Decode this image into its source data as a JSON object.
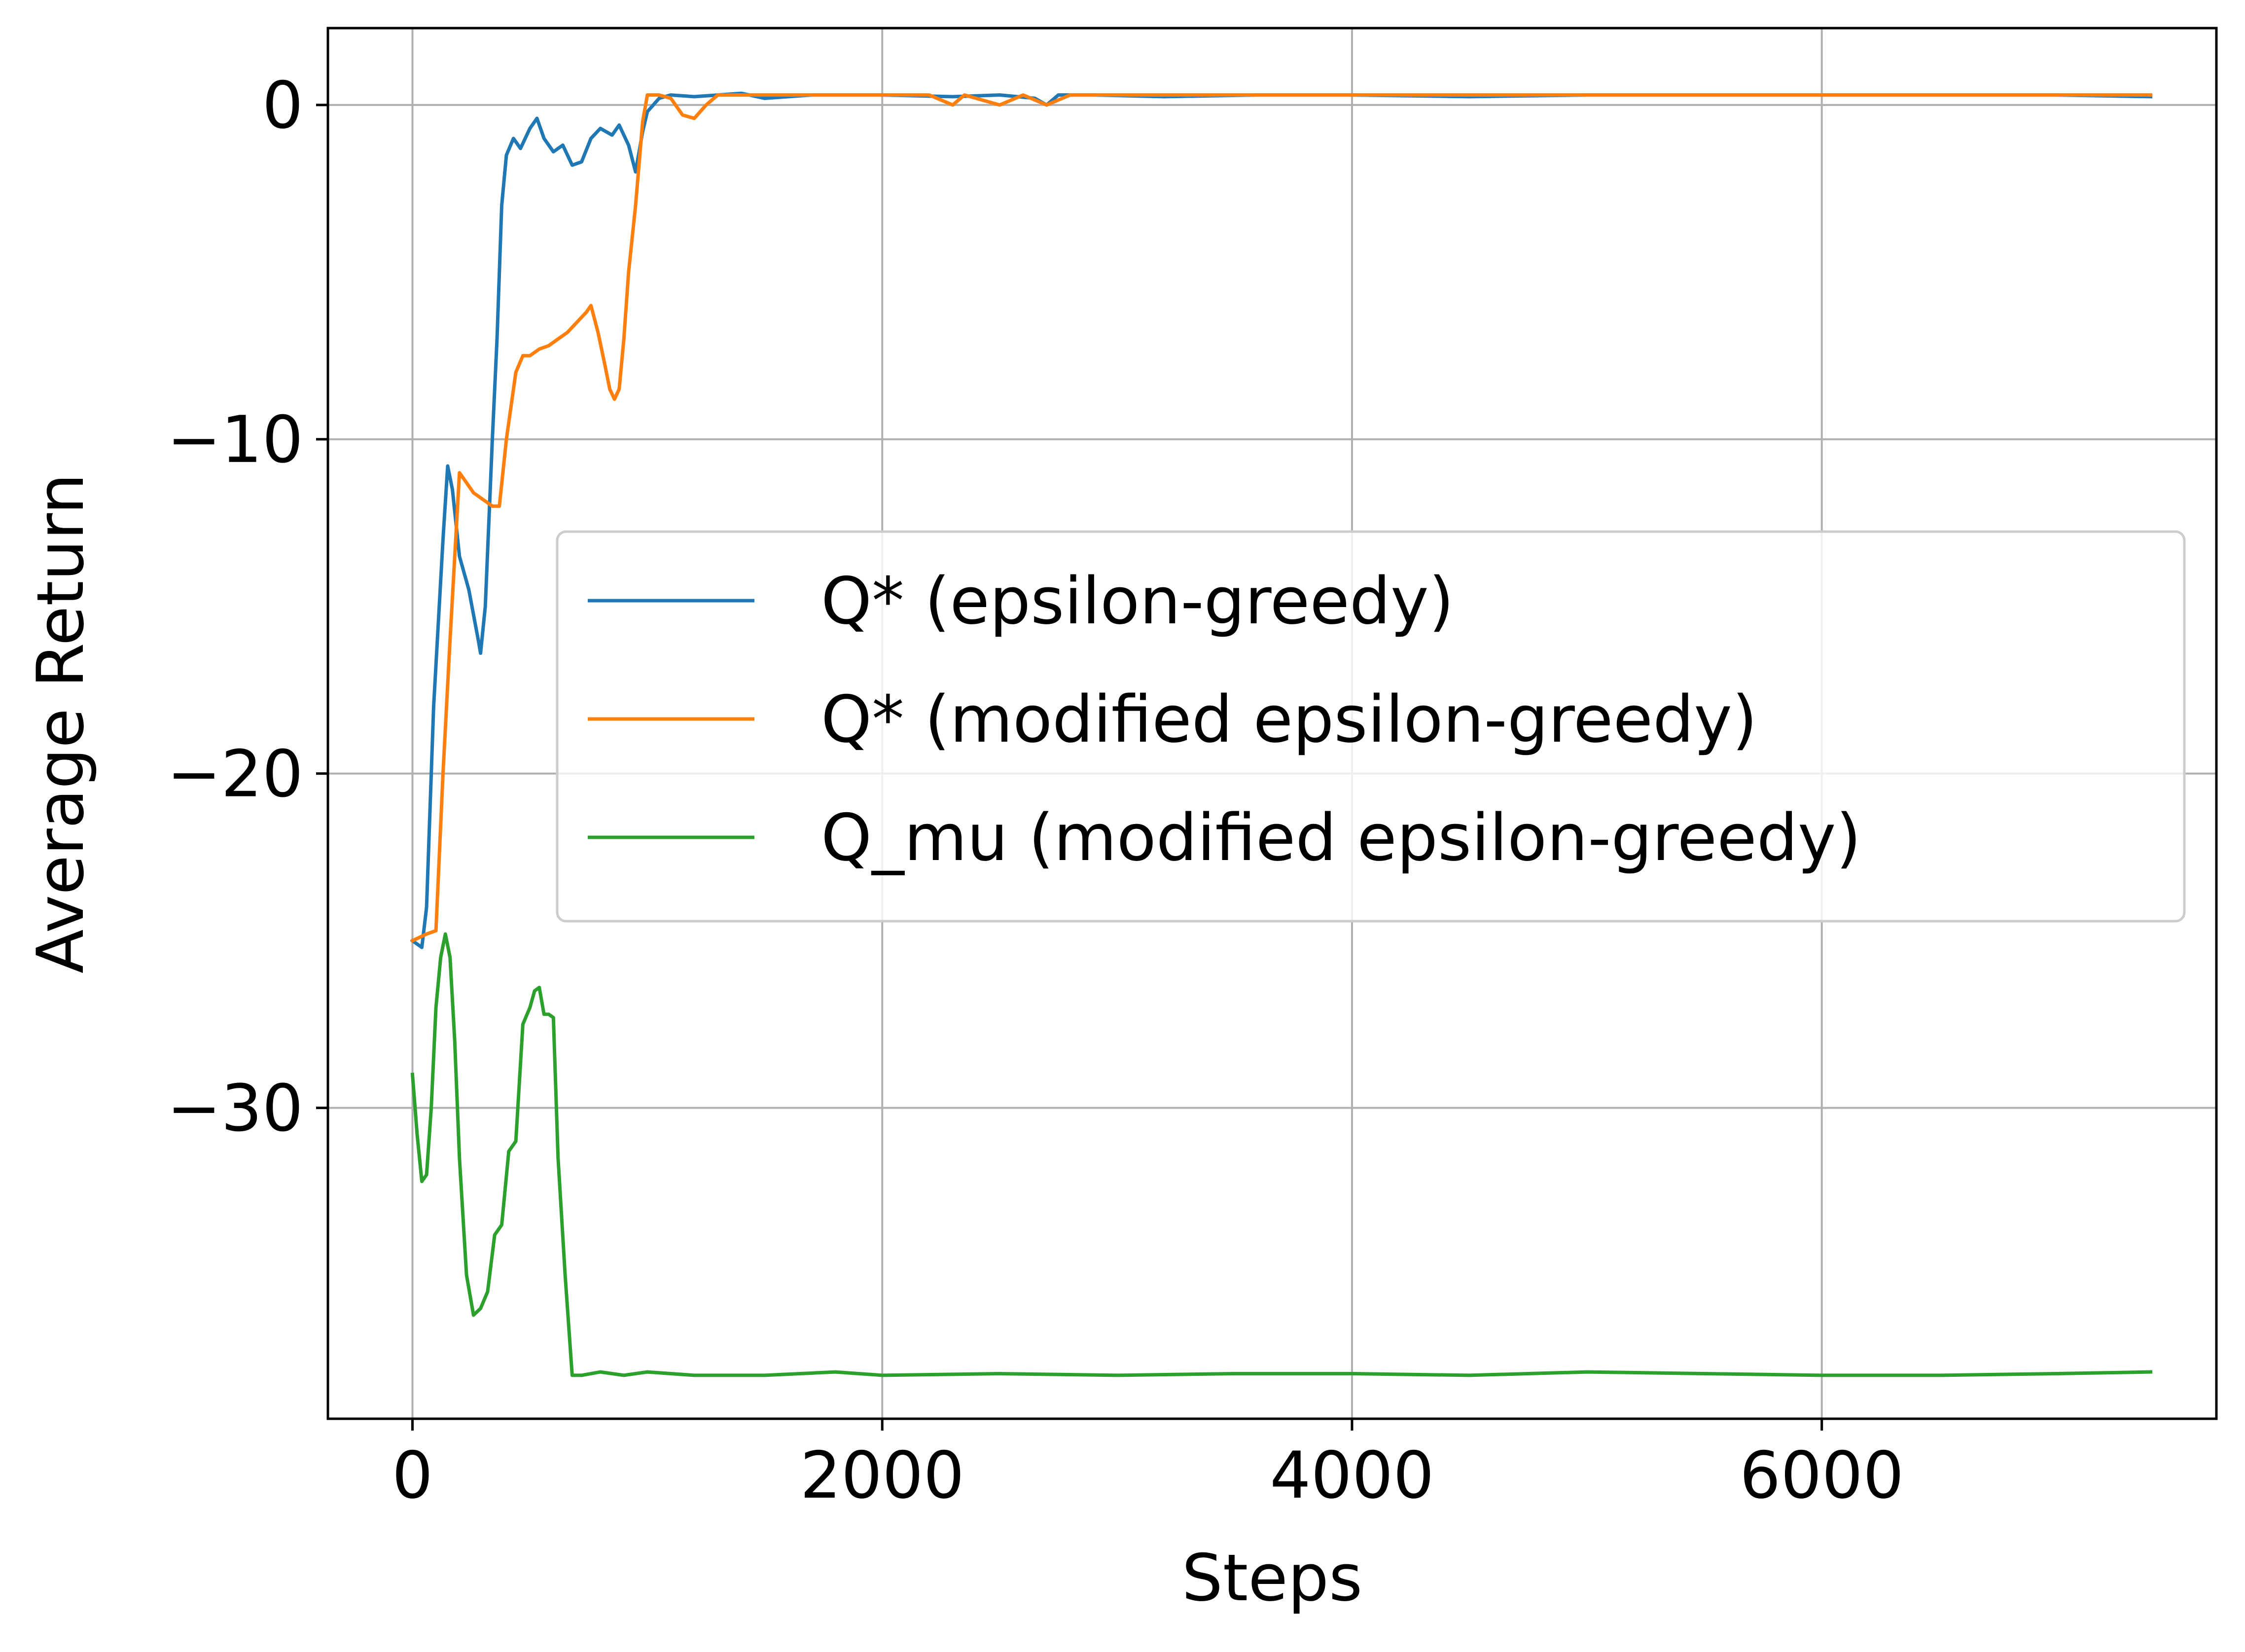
{
  "chart_data": {
    "type": "line",
    "xlabel": "Steps",
    "ylabel": "Average Return",
    "xlim": [
      -360,
      7680
    ],
    "ylim": [
      -39.3,
      2.3
    ],
    "xticks": [
      0,
      2000,
      4000,
      6000
    ],
    "xtick_labels": [
      "0",
      "2000",
      "4000",
      "6000"
    ],
    "yticks": [
      0,
      -10,
      -20,
      -30
    ],
    "ytick_labels": [
      "0",
      "−10",
      "−20",
      "−30"
    ],
    "grid": true,
    "legend_position": "center-right",
    "series": [
      {
        "name": "Q* (epsilon-greedy)",
        "color": "#1f77b4",
        "x": [
          0,
          40,
          60,
          90,
          130,
          150,
          170,
          200,
          240,
          280,
          290,
          310,
          340,
          360,
          380,
          400,
          430,
          460,
          500,
          530,
          560,
          600,
          640,
          680,
          720,
          760,
          800,
          850,
          880,
          920,
          950,
          980,
          1000,
          1050,
          1100,
          1200,
          1300,
          1400,
          1500,
          1700,
          2000,
          2300,
          2500,
          2650,
          2700,
          2750,
          2900,
          3200,
          3600,
          4000,
          4500,
          5000,
          5500,
          6000,
          6500,
          7000,
          7400
        ],
        "y": [
          -25,
          -25.2,
          -24,
          -18,
          -13,
          -10.8,
          -11.5,
          -13.5,
          -14.5,
          -16,
          -16.4,
          -15,
          -10,
          -7,
          -3,
          -1.5,
          -1.0,
          -1.3,
          -0.7,
          -0.4,
          -1.0,
          -1.4,
          -1.2,
          -1.8,
          -1.7,
          -1.0,
          -0.7,
          -0.9,
          -0.6,
          -1.2,
          -2.0,
          -0.8,
          -0.2,
          0.2,
          0.3,
          0.25,
          0.3,
          0.35,
          0.2,
          0.3,
          0.3,
          0.25,
          0.3,
          0.2,
          0.0,
          0.3,
          0.3,
          0.25,
          0.3,
          0.3,
          0.25,
          0.3,
          0.3,
          0.3,
          0.3,
          0.3,
          0.25
        ]
      },
      {
        "name": "Q* (modified epsilon-greedy)",
        "color": "#ff7f0e",
        "x": [
          0,
          60,
          100,
          130,
          160,
          200,
          230,
          260,
          300,
          340,
          370,
          400,
          440,
          470,
          500,
          540,
          580,
          620,
          660,
          700,
          740,
          760,
          790,
          820,
          840,
          860,
          880,
          900,
          920,
          950,
          980,
          1000,
          1050,
          1100,
          1150,
          1200,
          1250,
          1300,
          1400,
          1600,
          1800,
          2000,
          2200,
          2300,
          2350,
          2400,
          2500,
          2600,
          2700,
          2800,
          3000,
          3500,
          4000,
          4500,
          5000,
          5500,
          6000,
          6500,
          7000,
          7400
        ],
        "y": [
          -25,
          -24.8,
          -24.7,
          -20,
          -16,
          -11.0,
          -11.3,
          -11.6,
          -11.8,
          -12.0,
          -12.0,
          -10,
          -8,
          -7.5,
          -7.5,
          -7.3,
          -7.2,
          -7.0,
          -6.8,
          -6.5,
          -6.2,
          -6.0,
          -6.8,
          -7.8,
          -8.5,
          -8.8,
          -8.5,
          -7.0,
          -5.0,
          -3.0,
          -0.5,
          0.3,
          0.3,
          0.2,
          -0.3,
          -0.4,
          0.0,
          0.3,
          0.3,
          0.3,
          0.3,
          0.3,
          0.3,
          0.0,
          0.3,
          0.2,
          0.0,
          0.3,
          0.0,
          0.3,
          0.3,
          0.3,
          0.3,
          0.3,
          0.3,
          0.3,
          0.3,
          0.3,
          0.3,
          0.3
        ]
      },
      {
        "name": "Q_mu (modified epsilon-greedy)",
        "color": "#2ca02c",
        "x": [
          0,
          20,
          40,
          60,
          80,
          100,
          120,
          140,
          160,
          180,
          200,
          230,
          260,
          290,
          320,
          350,
          380,
          410,
          440,
          470,
          500,
          520,
          540,
          560,
          580,
          600,
          620,
          650,
          680,
          720,
          800,
          900,
          1000,
          1200,
          1500,
          1800,
          2000,
          2500,
          3000,
          3500,
          4000,
          4500,
          5000,
          5500,
          6000,
          6500,
          7000,
          7400
        ],
        "y": [
          -29,
          -30.8,
          -32.2,
          -32.0,
          -30,
          -27,
          -25.5,
          -24.8,
          -25.5,
          -28.0,
          -31.5,
          -35.0,
          -36.2,
          -36.0,
          -35.5,
          -33.8,
          -33.5,
          -31.3,
          -31.0,
          -27.5,
          -27.0,
          -26.5,
          -26.4,
          -27.2,
          -27.2,
          -27.3,
          -31.5,
          -35,
          -38.0,
          -38.0,
          -37.9,
          -38.0,
          -37.9,
          -38.0,
          -38.0,
          -37.9,
          -38.0,
          -37.95,
          -38.0,
          -37.95,
          -37.95,
          -38.0,
          -37.9,
          -37.95,
          -38.0,
          -38.0,
          -37.95,
          -37.9
        ]
      }
    ]
  }
}
